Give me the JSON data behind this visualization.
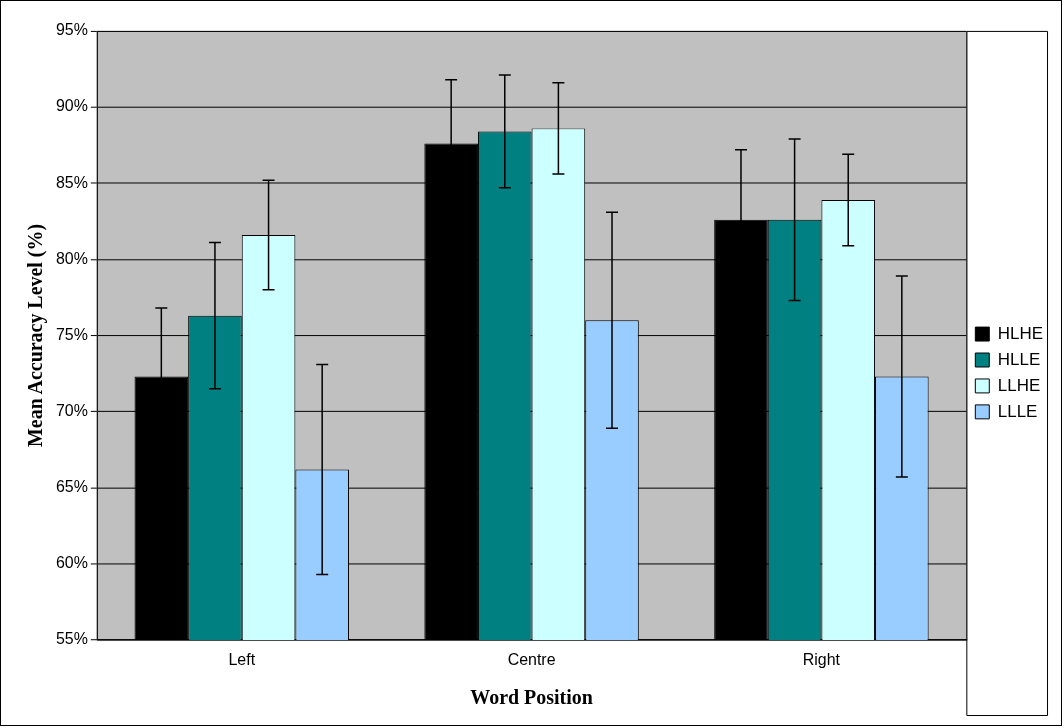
{
  "chart_data": {
    "type": "bar",
    "xlabel": "Word Position",
    "ylabel": "Mean Accuracy Level (%)",
    "categories": [
      "Left",
      "Centre",
      "Right"
    ],
    "series": [
      {
        "name": "HLHE",
        "color": "#000000",
        "values": [
          72.3,
          87.6,
          82.6
        ],
        "errors": [
          4.5,
          4.2,
          4.6
        ]
      },
      {
        "name": "HLLE",
        "color": "#008080",
        "values": [
          76.3,
          88.4,
          82.6
        ],
        "errors": [
          4.8,
          3.7,
          5.3
        ]
      },
      {
        "name": "LLHE",
        "color": "#ccffff",
        "values": [
          81.6,
          88.6,
          83.9
        ],
        "errors": [
          3.6,
          3.0,
          3.0
        ]
      },
      {
        "name": "LLLE",
        "color": "#99ccff",
        "values": [
          66.2,
          76.0,
          72.3
        ],
        "errors": [
          6.9,
          7.1,
          6.6
        ]
      }
    ],
    "ylim": [
      55,
      95
    ],
    "yticks": [
      {
        "value": 55,
        "label": "55%"
      },
      {
        "value": 60,
        "label": "60%"
      },
      {
        "value": 65,
        "label": "65%"
      },
      {
        "value": 70,
        "label": "70%"
      },
      {
        "value": 75,
        "label": "75%"
      },
      {
        "value": 80,
        "label": "80%"
      },
      {
        "value": 85,
        "label": "85%"
      },
      {
        "value": 90,
        "label": "90%"
      },
      {
        "value": 95,
        "label": "95%"
      }
    ],
    "grid": "y",
    "legend": "right"
  }
}
